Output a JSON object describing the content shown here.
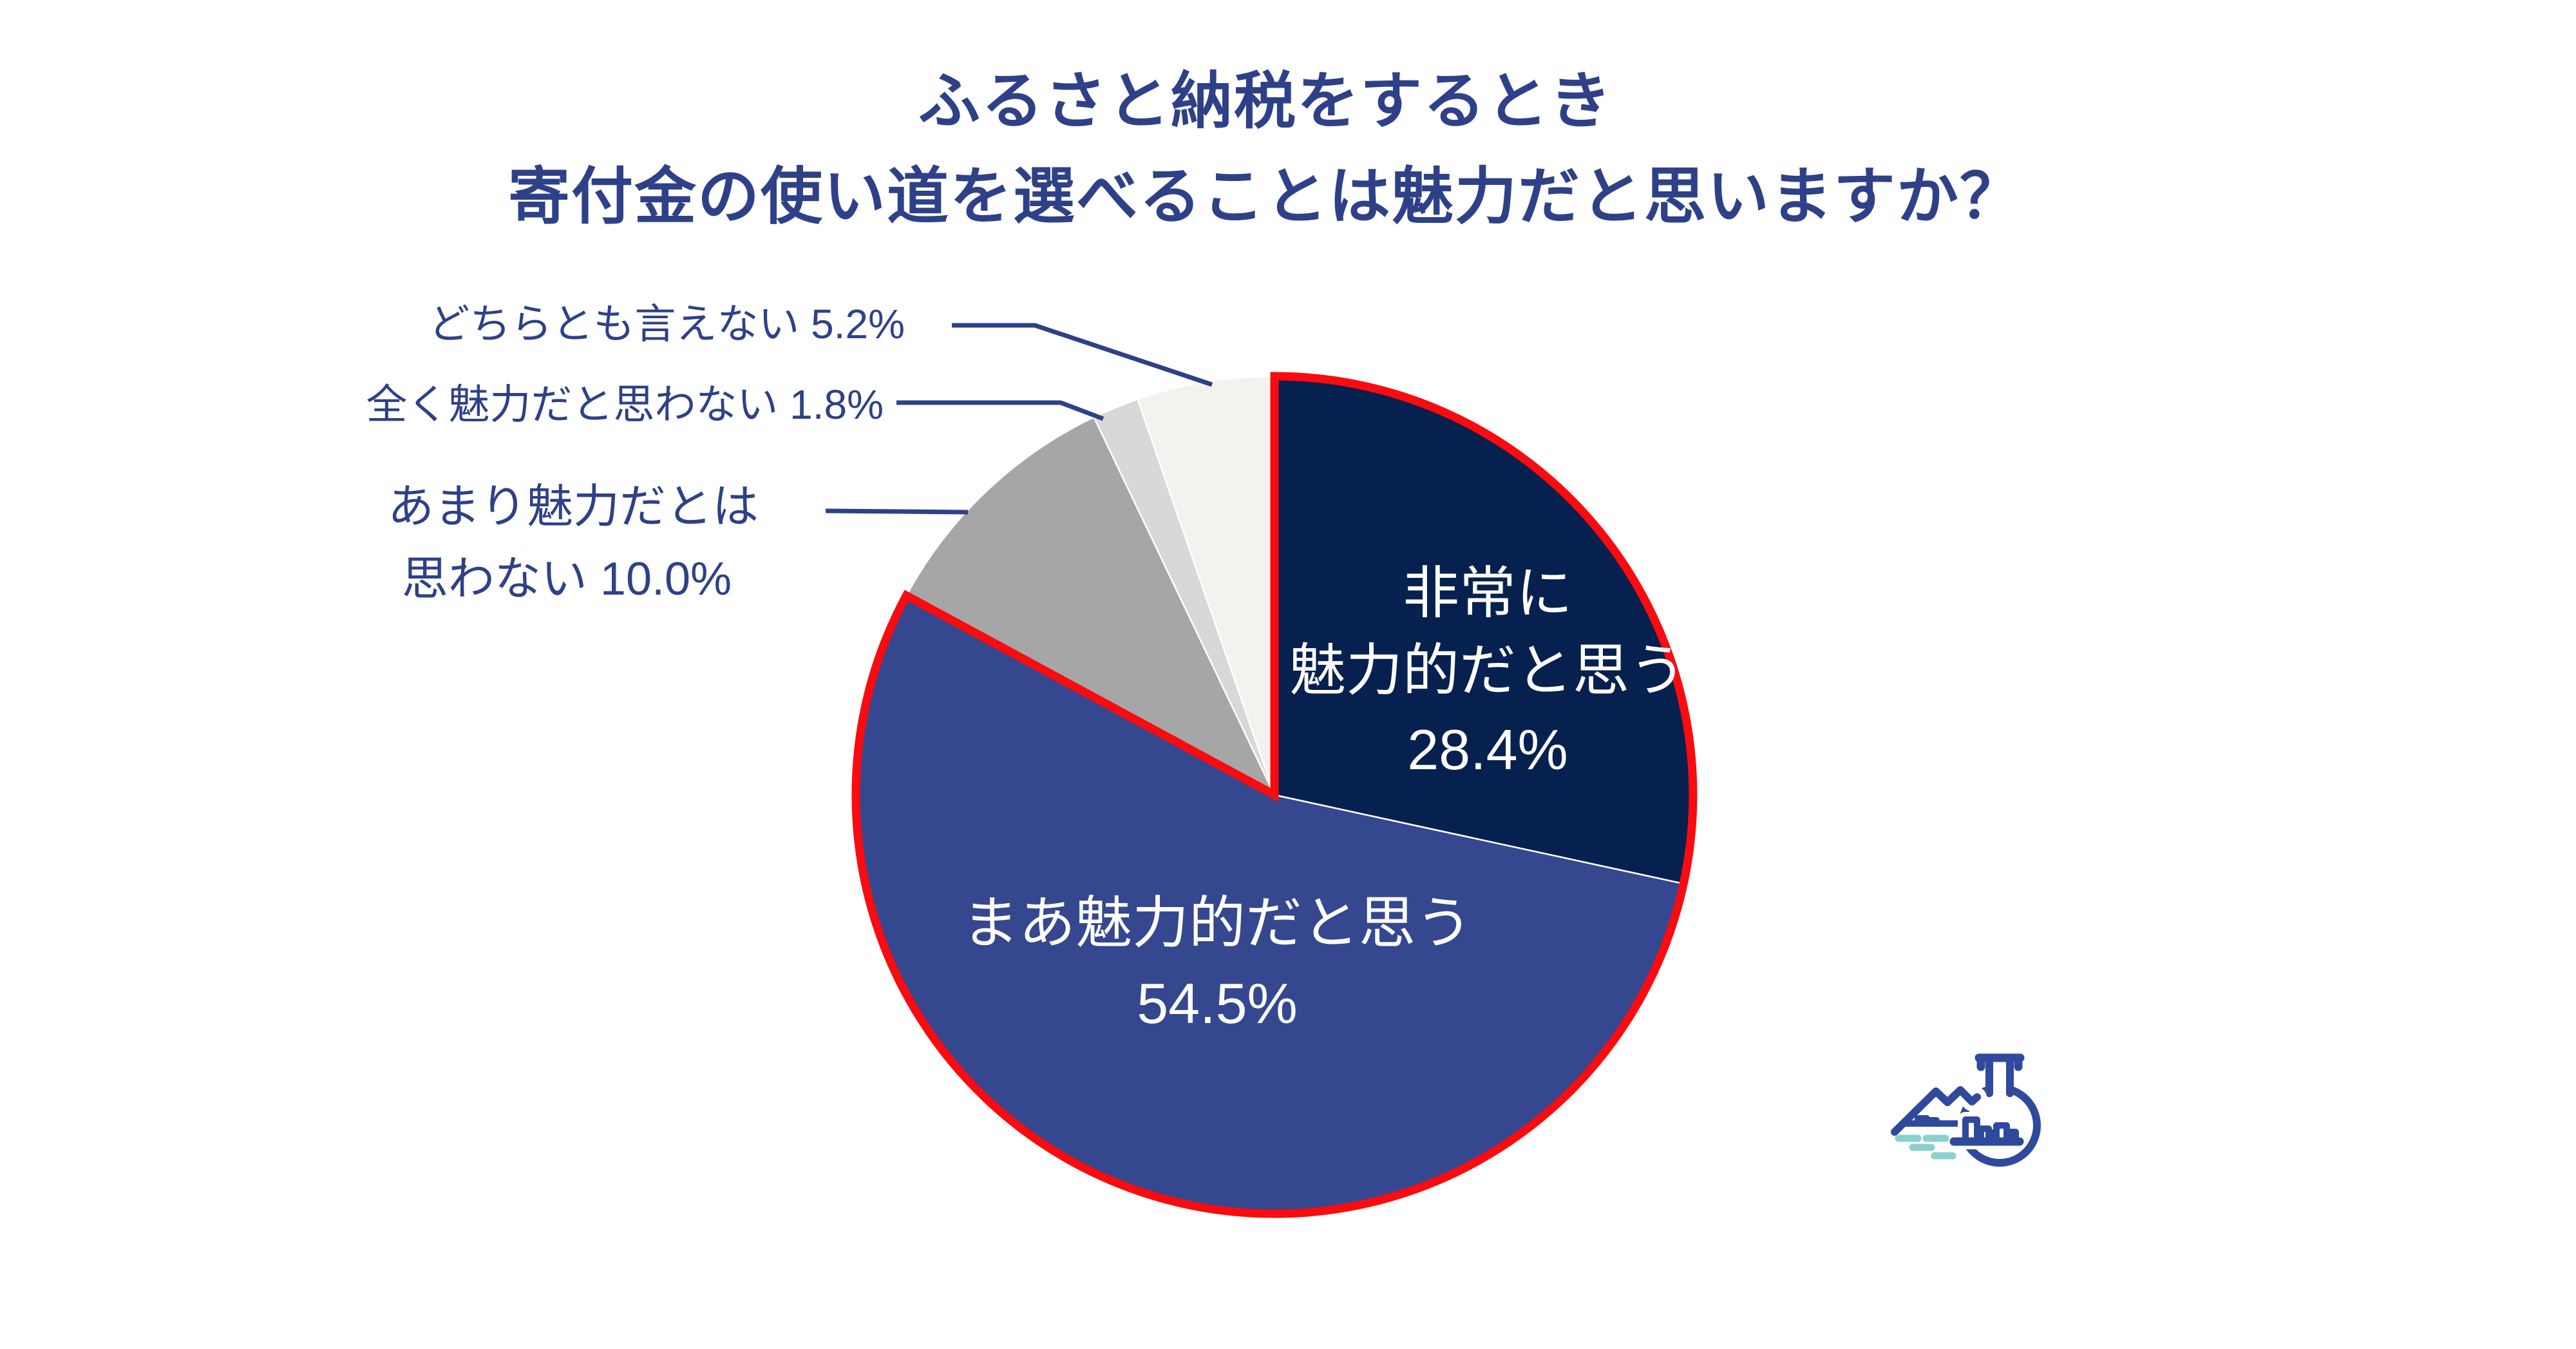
{
  "page": {
    "background": "#FFFFFF"
  },
  "title": {
    "line1": "ふるさと納税をするとき",
    "line2": "寄付金の使い道を選べることは魅力だと思いますか？",
    "color": "#2E4188"
  },
  "chart_data": {
    "type": "pie",
    "title": "ふるさと納税をするとき 寄付金の使い道を選べることは魅力だと思いますか？",
    "unit": "%",
    "start_angle_deg": 0,
    "direction": "clockwise",
    "categories": [
      "非常に魅力的だと思う",
      "まあ魅力的だと思う",
      "あまり魅力だとは思わない",
      "全く魅力だと思わない",
      "どちらとも言えない"
    ],
    "values": [
      28.4,
      54.5,
      10.0,
      1.8,
      5.2
    ],
    "colors": [
      "#06214F",
      "#35478F",
      "#A6A6A6",
      "#D8D8D8",
      "#F2F2EE"
    ],
    "slice_border_color": "#FFFFFF",
    "highlighted_slices": [
      0,
      1
    ],
    "highlight_outline_color": "#F90B0F",
    "legend": "none"
  },
  "slice_labels": {
    "very": {
      "line1": "非常に",
      "line2": "魅力的だと思う",
      "line3": "28.4%"
    },
    "somewhat": {
      "line1": "まあ魅力的だと思う",
      "line2": "54.5%"
    }
  },
  "callouts": {
    "neutral": "どちらとも言えない 5.2%",
    "not_at_all": "全く魅力だと思わない 1.8%",
    "not_really_line1": "あまり魅力だとは",
    "not_really_line2": "思わない 10.0%"
  },
  "logo": {
    "name": "flask-and-town-logo",
    "primary_color": "#2F4A9D",
    "accent_color": "#8AD1CD"
  }
}
